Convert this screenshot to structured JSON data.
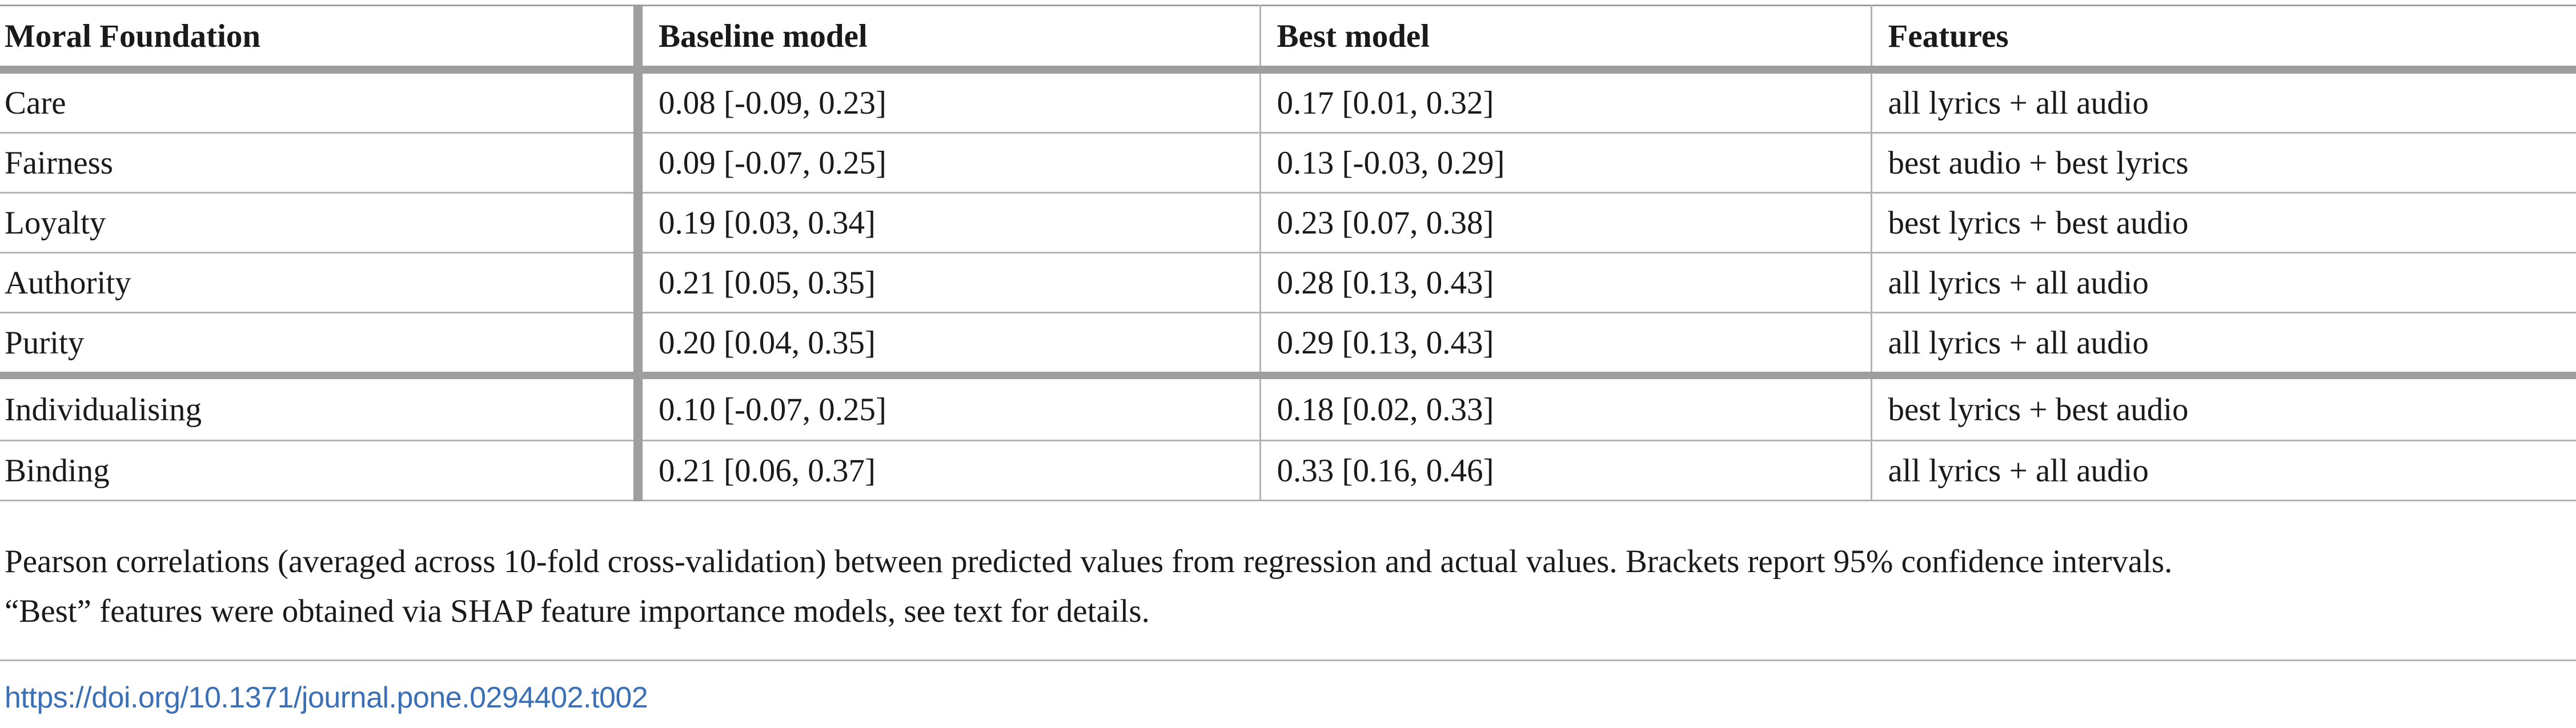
{
  "table": {
    "headers": [
      "Moral Foundation",
      "Baseline model",
      "Best model",
      "Features"
    ],
    "rows": [
      {
        "foundation": "Care",
        "baseline": "0.08 [-0.09, 0.23]",
        "best": "0.17 [0.01, 0.32]",
        "features": "all lyrics + all audio"
      },
      {
        "foundation": "Fairness",
        "baseline": "0.09 [-0.07, 0.25]",
        "best": "0.13 [-0.03, 0.29]",
        "features": "best audio + best lyrics"
      },
      {
        "foundation": "Loyalty",
        "baseline": "0.19 [0.03, 0.34]",
        "best": "0.23 [0.07, 0.38]",
        "features": "best lyrics + best audio"
      },
      {
        "foundation": "Authority",
        "baseline": "0.21 [0.05, 0.35]",
        "best": "0.28 [0.13, 0.43]",
        "features": "all lyrics + all audio"
      },
      {
        "foundation": "Purity",
        "baseline": "0.20 [0.04, 0.35]",
        "best": "0.29 [0.13, 0.43]",
        "features": "all lyrics + all audio"
      },
      {
        "foundation": "Individualising",
        "baseline": "0.10 [-0.07, 0.25]",
        "best": "0.18 [0.02, 0.33]",
        "features": "best lyrics + best audio"
      },
      {
        "foundation": "Binding",
        "baseline": "0.21 [0.06, 0.37]",
        "best": "0.33 [0.16, 0.46]",
        "features": "all lyrics + all audio"
      }
    ]
  },
  "footnote": {
    "line1": "Pearson correlations (averaged across 10-fold cross-validation) between predicted values from regression and actual values. Brackets report 95% confidence intervals.",
    "line2": "“Best” features were obtained via SHAP feature importance models, see text for details."
  },
  "doi": {
    "text": "https://doi.org/10.1371/journal.pone.0294402.t002",
    "href": "https://doi.org/10.1371/journal.pone.0294402.t002"
  },
  "colors": {
    "link": "#3b6fb6",
    "rule_heavy": "#9e9e9e",
    "rule_light": "#b3b3b3"
  }
}
